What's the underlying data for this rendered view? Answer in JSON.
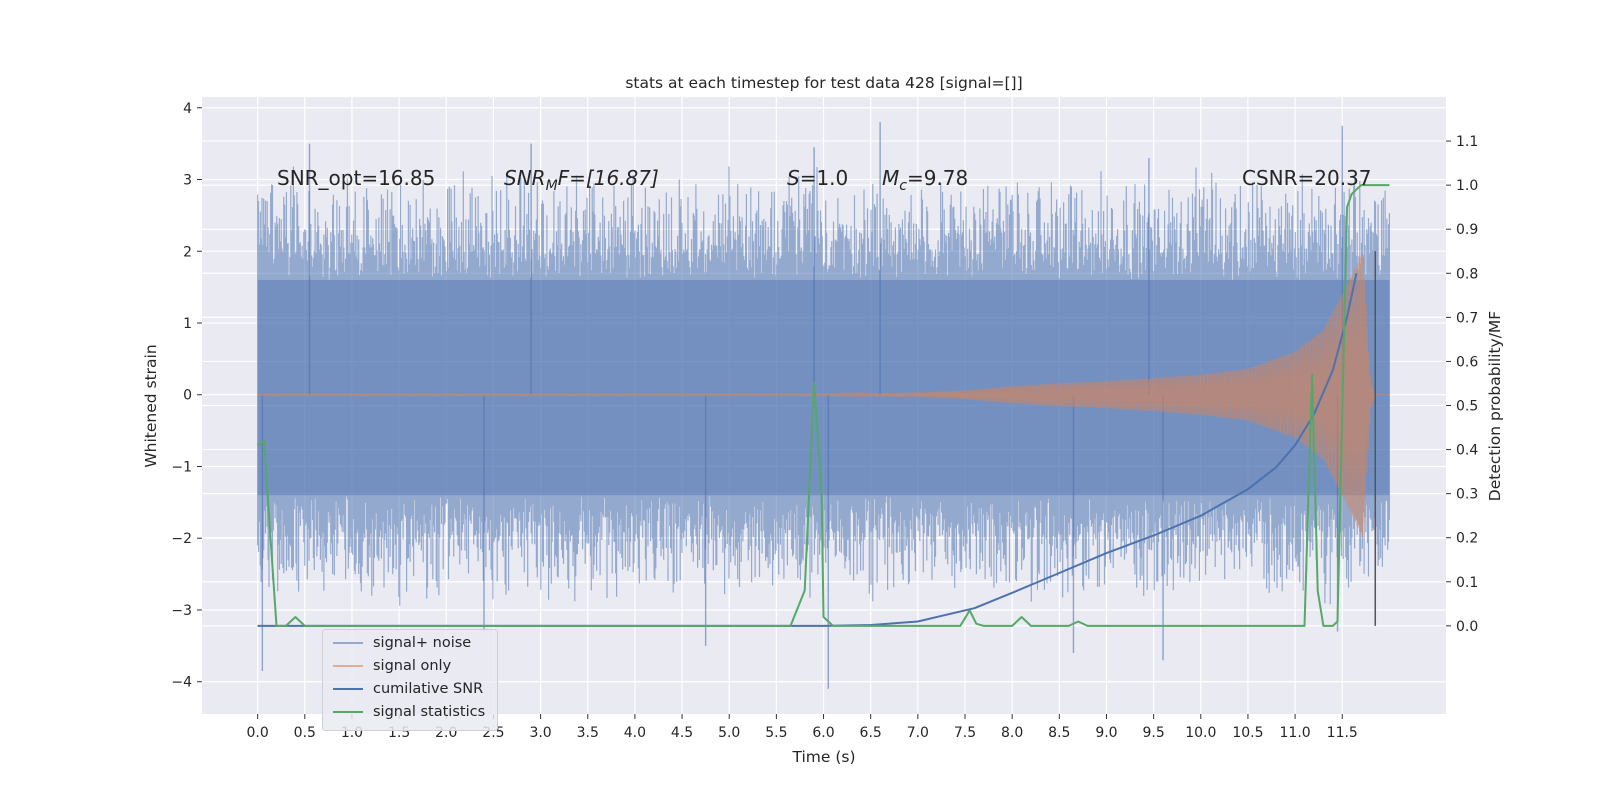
{
  "chart_data": {
    "type": "line",
    "title": "stats at each timestep for test data 428 [signal=[]]",
    "xlabel": "Time (s)",
    "ylabel": "Whitened strain",
    "ylabel_right": "Detection probability/MF",
    "xlim": [
      -0.59,
      12.6
    ],
    "ylim": [
      -4.45,
      4.15
    ],
    "ylim_right": [
      -0.2,
      1.2
    ],
    "x_ticks": [
      "0.0",
      "0.5",
      "1.0",
      "1.5",
      "2.0",
      "2.5",
      "3.0",
      "3.5",
      "4.0",
      "4.5",
      "5.0",
      "5.5",
      "6.0",
      "6.5",
      "7.0",
      "7.5",
      "8.0",
      "8.5",
      "9.0",
      "9.5",
      "10.0",
      "10.5",
      "11.0",
      "11.5"
    ],
    "y_ticks": [
      "4",
      "3",
      "2",
      "1",
      "0",
      "−1",
      "−2",
      "−3",
      "−4"
    ],
    "y_ticks_right": [
      "1.1",
      "1.0",
      "0.9",
      "0.8",
      "0.7",
      "0.6",
      "0.5",
      "0.4",
      "0.3",
      "0.2",
      "0.1",
      "0.0"
    ],
    "annotations": {
      "snr_opt": "SNR_opt=16.85",
      "snr_mf_base": "SNR",
      "snr_mf_sub": "M",
      "snr_mf_rest": "F=[16.87]",
      "s_base": "S",
      "s_rest": "=1.0",
      "mc_base": "M",
      "mc_sub": "c",
      "mc_rest": "=9.78",
      "csnr": "CSNR=20.37"
    },
    "series": [
      {
        "name": "signal+ noise",
        "color": "#4c72b0",
        "alpha": 0.5,
        "x_range": [
          0.0,
          12.0
        ],
        "band_core": [
          -1.4,
          1.6
        ],
        "band_typical": [
          -2.4,
          2.7
        ],
        "extremes": [
          [
            0.05,
            -3.85
          ],
          [
            0.55,
            3.5
          ],
          [
            2.4,
            -3.3
          ],
          [
            2.9,
            3.5
          ],
          [
            4.75,
            -3.5
          ],
          [
            5.9,
            3.45
          ],
          [
            6.05,
            -4.1
          ],
          [
            6.6,
            3.8
          ],
          [
            8.65,
            -3.6
          ],
          [
            9.6,
            -3.7
          ],
          [
            9.45,
            3.3
          ],
          [
            11.5,
            3.75
          ],
          [
            11.45,
            -3.3
          ]
        ]
      },
      {
        "name": "signal only",
        "color": "#dd8452",
        "x_range": [
          0.0,
          12.0
        ],
        "envelope": [
          [
            0.0,
            0.01
          ],
          [
            6.0,
            0.01
          ],
          [
            7.0,
            0.03
          ],
          [
            7.5,
            0.06
          ],
          [
            8.0,
            0.12
          ],
          [
            8.5,
            0.16
          ],
          [
            9.0,
            0.19
          ],
          [
            9.5,
            0.23
          ],
          [
            10.0,
            0.28
          ],
          [
            10.5,
            0.36
          ],
          [
            11.0,
            0.6
          ],
          [
            11.3,
            0.9
          ],
          [
            11.5,
            1.4
          ],
          [
            11.65,
            1.8
          ],
          [
            11.72,
            2.0
          ],
          [
            11.8,
            0.2
          ],
          [
            11.85,
            0.0
          ],
          [
            12.0,
            0.0
          ]
        ]
      },
      {
        "name": "cumilative SNR",
        "color": "#4c72b0",
        "x": [
          0.0,
          6.0,
          6.5,
          7.0,
          7.3,
          7.6,
          8.0,
          8.5,
          9.0,
          9.5,
          10.0,
          10.5,
          10.8,
          11.0,
          11.2,
          11.4,
          11.55,
          11.65
        ],
        "y": [
          0.0,
          0.0,
          0.002,
          0.01,
          0.025,
          0.04,
          0.075,
          0.12,
          0.165,
          0.205,
          0.25,
          0.31,
          0.36,
          0.41,
          0.48,
          0.58,
          0.7,
          0.8
        ]
      },
      {
        "name": "signal statistics",
        "color": "#55a868",
        "x": [
          0.0,
          0.07,
          0.12,
          0.2,
          0.3,
          0.4,
          0.5,
          5.5,
          5.65,
          5.8,
          5.9,
          5.98,
          6.0,
          6.1,
          7.45,
          7.55,
          7.62,
          7.7,
          8.0,
          8.1,
          8.2,
          8.6,
          8.7,
          8.8,
          11.0,
          11.1,
          11.18,
          11.24,
          11.3,
          11.4,
          11.45,
          11.55,
          11.6,
          11.7,
          12.0
        ],
        "y": [
          0.41,
          0.42,
          0.25,
          0.0,
          0.0,
          0.02,
          0.0,
          0.0,
          0.0,
          0.08,
          0.55,
          0.3,
          0.02,
          0.0,
          0.0,
          0.035,
          0.005,
          0.0,
          0.0,
          0.02,
          0.0,
          0.0,
          0.01,
          0.0,
          0.0,
          0.0,
          0.57,
          0.08,
          0.0,
          0.0,
          0.01,
          0.95,
          0.98,
          1.0,
          1.0
        ]
      }
    ],
    "vline": {
      "x": 11.85,
      "y": [
        0.0,
        0.85
      ],
      "color": "#555555"
    },
    "grid": true,
    "legend_position": "lower-left"
  }
}
